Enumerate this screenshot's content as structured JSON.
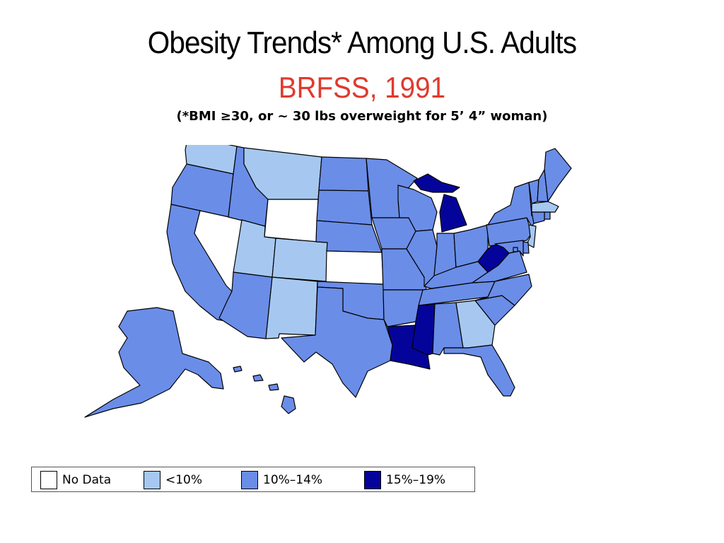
{
  "title": "Obesity Trends* Among U.S. Adults",
  "subtitle": "BRFSS, 1991",
  "note": "(*BMI ≥30, or ~ 30 lbs overweight for 5’ 4” woman)",
  "colors": {
    "subtitle": "#e03a2e",
    "no_data": "#ffffff",
    "lt10": "#a6c8f0",
    "10to14": "#6a8de8",
    "15to19": "#05049a"
  },
  "legend": [
    {
      "label": "No Data",
      "category": "no_data"
    },
    {
      "label": "<10%",
      "category": "lt10"
    },
    {
      "label": "10%–14%",
      "category": "10to14"
    },
    {
      "label": "15%–19%",
      "category": "15to19"
    }
  ],
  "state_categories": {
    "WA": "lt10",
    "OR": "10to14",
    "CA": "10to14",
    "NV": "no_data",
    "ID": "10to14",
    "MT": "lt10",
    "WY": "no_data",
    "UT": "lt10",
    "CO": "lt10",
    "AZ": "10to14",
    "NM": "lt10",
    "ND": "10to14",
    "SD": "10to14",
    "NE": "10to14",
    "KS": "no_data",
    "OK": "10to14",
    "TX": "10to14",
    "MN": "10to14",
    "IA": "10to14",
    "MO": "10to14",
    "AR": "10to14",
    "LA": "15to19",
    "WI": "10to14",
    "IL": "10to14",
    "MI": "15to19",
    "IN": "10to14",
    "OH": "10to14",
    "KY": "10to14",
    "TN": "10to14",
    "MS": "15to19",
    "AL": "10to14",
    "GA": "lt10",
    "FL": "10to14",
    "SC": "10to14",
    "NC": "10to14",
    "VA": "10to14",
    "WV": "15to19",
    "PA": "10to14",
    "NY": "10to14",
    "VT": "10to14",
    "NH": "10to14",
    "ME": "10to14",
    "MA": "lt10",
    "RI": "10to14",
    "CT": "10to14",
    "NJ": "lt10",
    "DE": "10to14",
    "MD": "10to14",
    "DC": "10to14",
    "AK": "10to14",
    "HI": "10to14"
  }
}
